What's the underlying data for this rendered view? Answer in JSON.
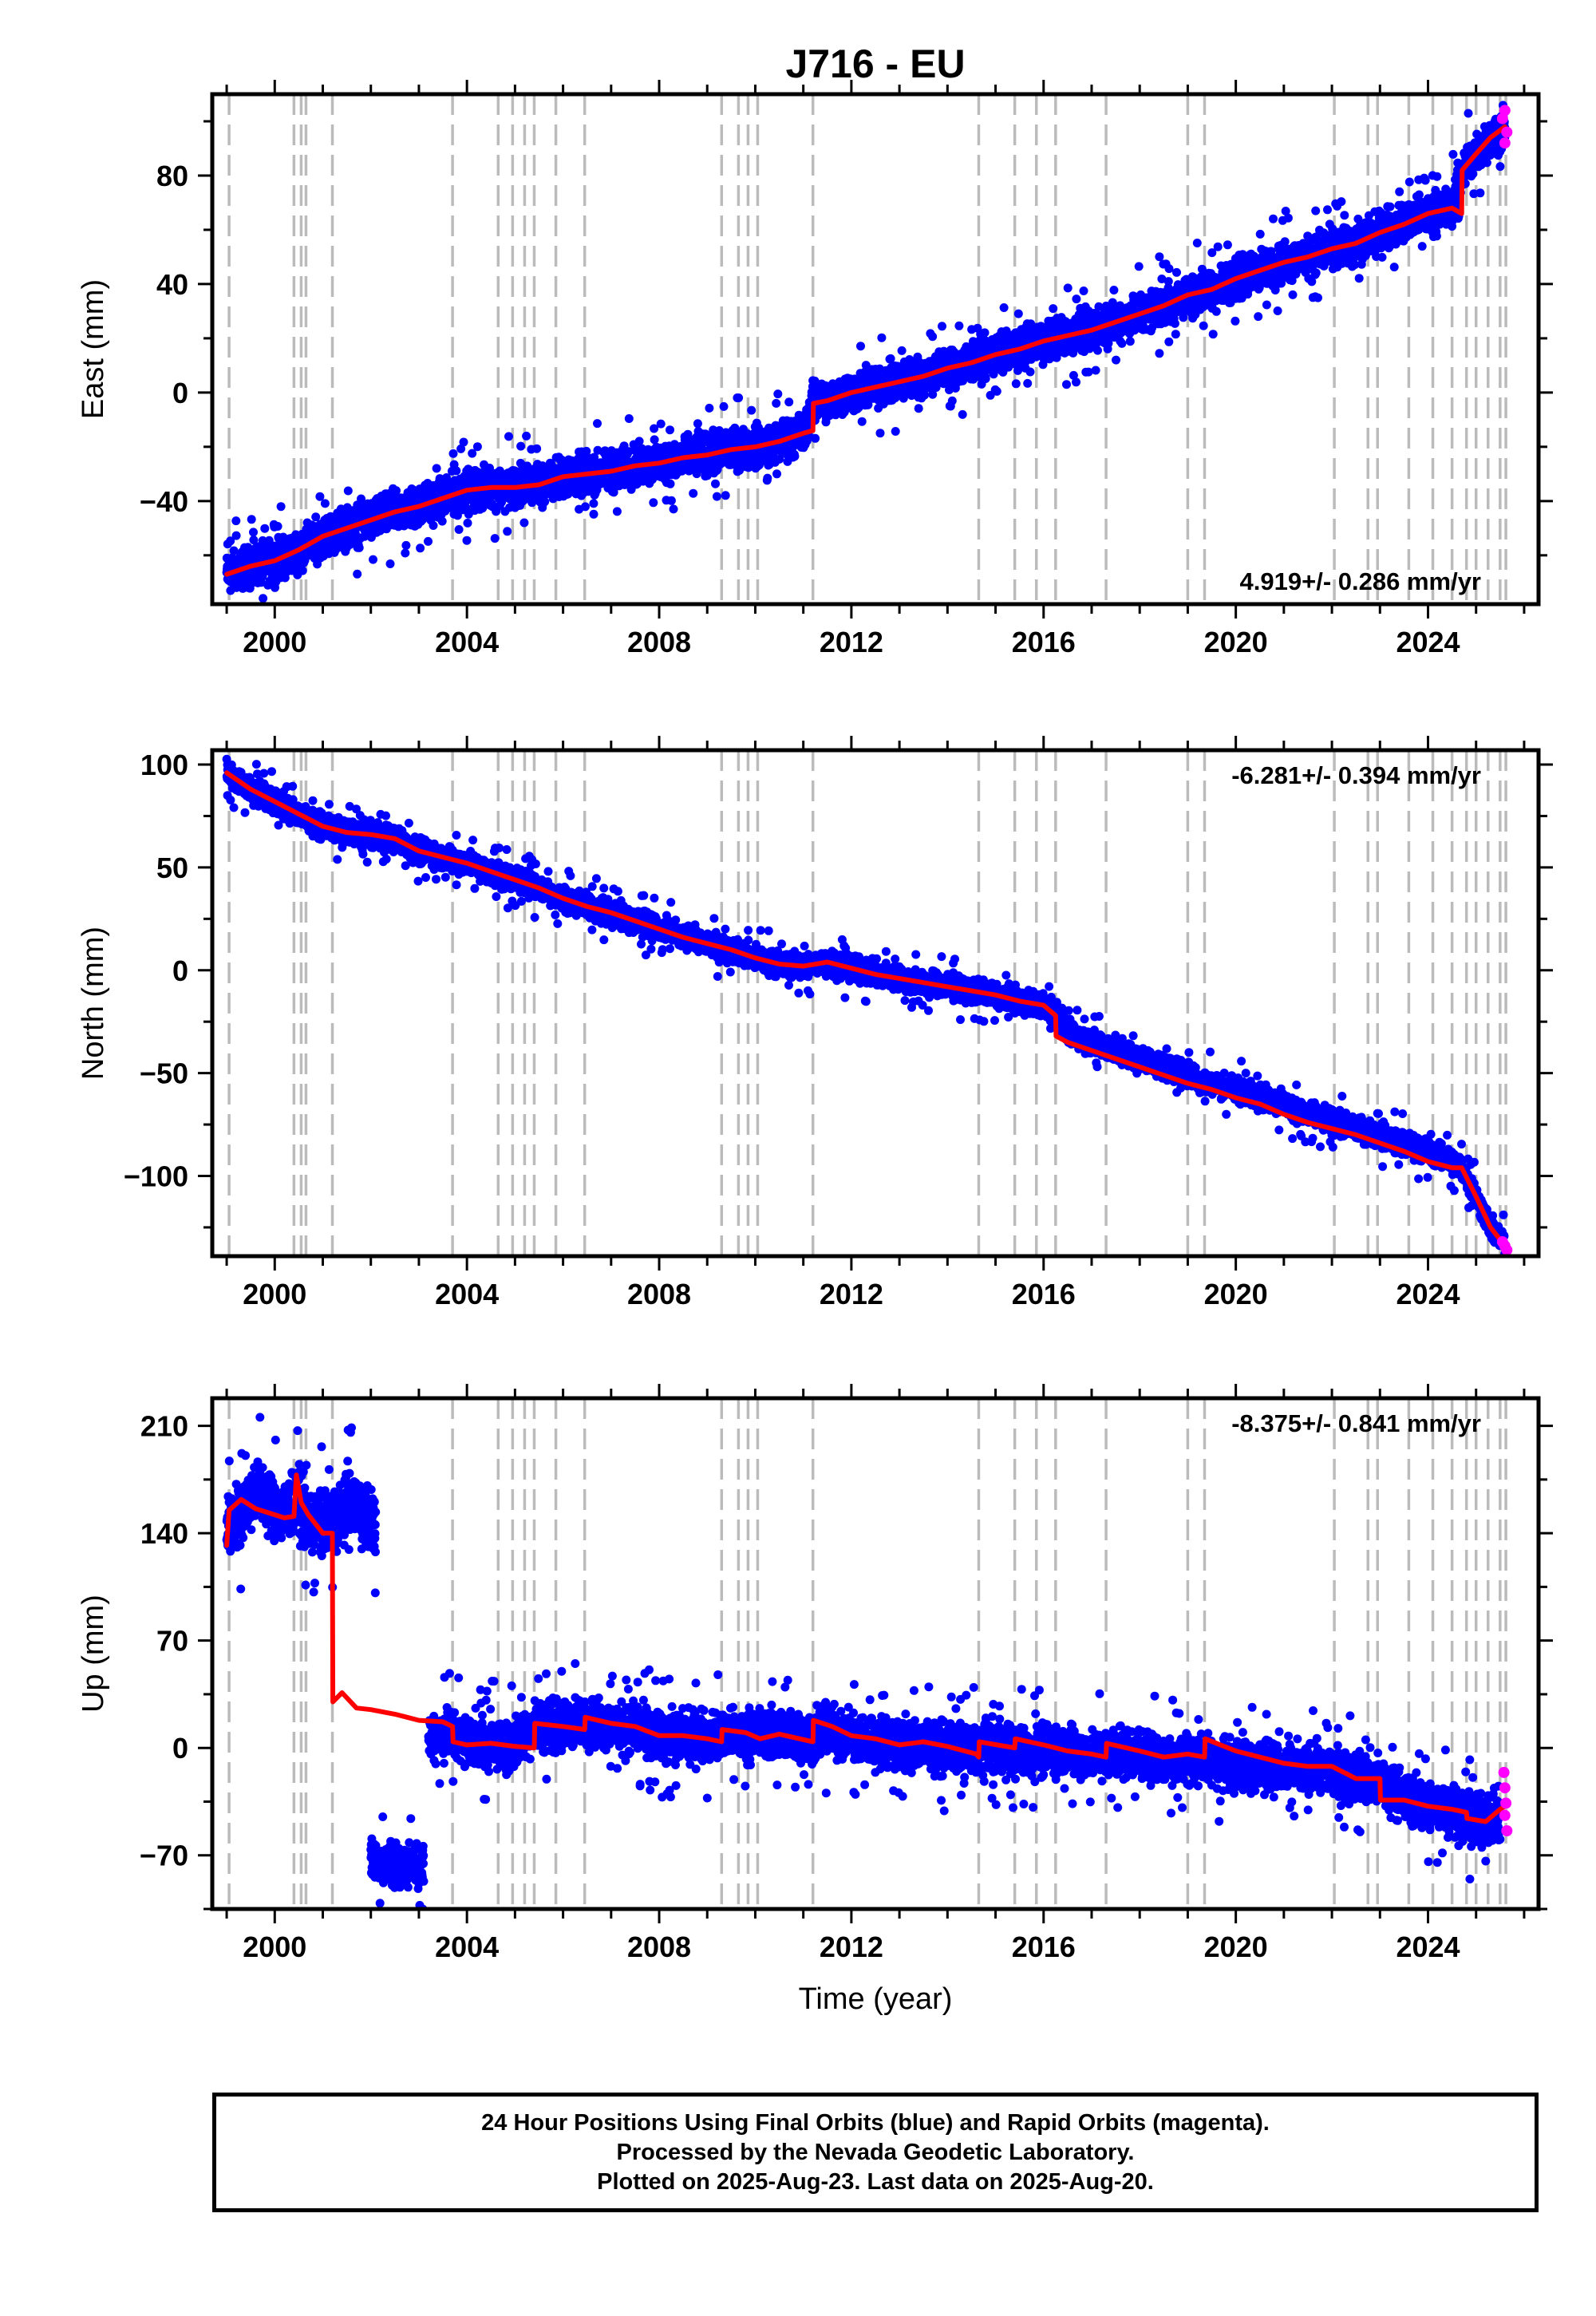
{
  "title": "J716 - EU",
  "colors": {
    "final_orbits": "#0000ff",
    "rapid_orbits": "#ff00ff",
    "model": "#ff0000",
    "event_lines": "#bbbbbb",
    "frame": "#000000"
  },
  "xaxis": {
    "label": "Time (year)",
    "ticks": [
      2000,
      2004,
      2008,
      2012,
      2016,
      2020,
      2024
    ],
    "range": [
      1998.7,
      2026.3
    ]
  },
  "event_lines": [
    1999.05,
    2000.4,
    2000.55,
    2000.65,
    2001.2,
    2003.7,
    2004.65,
    2004.95,
    2005.2,
    2005.4,
    2005.85,
    2006.45,
    2009.3,
    2009.65,
    2009.85,
    2010.05,
    2011.2,
    2014.65,
    2015.4,
    2015.85,
    2016.25,
    2017.3,
    2019.0,
    2019.35,
    2022.05,
    2022.75,
    2022.95,
    2023.6,
    2024.1,
    2024.5,
    2024.8,
    2025.0,
    2025.25,
    2025.5,
    2025.62
  ],
  "chart_data": [
    {
      "type": "scatter",
      "panel": "east",
      "ylabel": "East (mm)",
      "ylim": [
        -78,
        110
      ],
      "yticks": [
        -40,
        0,
        40,
        80
      ],
      "rate_text": "4.919+/- 0.286 mm/yr",
      "rate_position": "bottom-right",
      "series": [
        {
          "name": "24 Hour Positions (Final Orbits)",
          "kind": "scatter-band",
          "color": "#0000ff",
          "x": [
            1999.0,
            1999.5,
            2000.0,
            2000.5,
            2001.0,
            2001.5,
            2002.0,
            2002.5,
            2003.0,
            2003.5,
            2004.0,
            2004.5,
            2005.0,
            2005.5,
            2006.0,
            2006.5,
            2007.0,
            2007.5,
            2008.0,
            2008.5,
            2009.0,
            2009.5,
            2010.0,
            2010.5,
            2011.0,
            2011.2,
            2011.5,
            2012.0,
            2012.5,
            2013.0,
            2013.5,
            2014.0,
            2014.5,
            2015.0,
            2015.5,
            2016.0,
            2016.5,
            2017.0,
            2017.5,
            2018.0,
            2018.5,
            2019.0,
            2019.5,
            2020.0,
            2020.5,
            2021.0,
            2021.5,
            2022.0,
            2022.5,
            2023.0,
            2023.5,
            2024.0,
            2024.5,
            2024.7,
            2025.0,
            2025.3,
            2025.6
          ],
          "y": [
            -67,
            -64,
            -62,
            -58,
            -53,
            -50,
            -47,
            -44,
            -42,
            -39,
            -36,
            -35,
            -35,
            -34,
            -31,
            -30,
            -29,
            -27,
            -26,
            -24,
            -23,
            -21,
            -20,
            -18,
            -15,
            -4,
            -3,
            0,
            2,
            4,
            6,
            9,
            11,
            14,
            16,
            19,
            21,
            23,
            26,
            29,
            32,
            36,
            38,
            42,
            45,
            48,
            50,
            53,
            55,
            59,
            62,
            66,
            68,
            82,
            88,
            94,
            98
          ],
          "spread": 5
        },
        {
          "name": "Model",
          "kind": "line",
          "color": "#ff0000",
          "x": [
            1999.0,
            1999.5,
            2000.0,
            2000.5,
            2001.0,
            2001.5,
            2002.0,
            2002.5,
            2003.0,
            2003.5,
            2004.0,
            2004.5,
            2005.0,
            2005.5,
            2006.0,
            2006.5,
            2007.0,
            2007.5,
            2008.0,
            2008.5,
            2009.0,
            2009.5,
            2010.0,
            2010.5,
            2011.0,
            2011.2,
            2011.21,
            2011.5,
            2012.0,
            2012.5,
            2013.0,
            2013.5,
            2014.0,
            2014.5,
            2015.0,
            2015.5,
            2016.0,
            2016.5,
            2017.0,
            2017.5,
            2018.0,
            2018.5,
            2019.0,
            2019.5,
            2020.0,
            2020.5,
            2021.0,
            2021.5,
            2022.0,
            2022.5,
            2023.0,
            2023.5,
            2024.0,
            2024.5,
            2024.7,
            2024.71,
            2025.0,
            2025.3,
            2025.6
          ],
          "y": [
            -67,
            -64,
            -62,
            -58,
            -53,
            -50,
            -47,
            -44,
            -42,
            -39,
            -36,
            -35,
            -35,
            -34,
            -31,
            -30,
            -29,
            -27,
            -26,
            -24,
            -23,
            -21,
            -20,
            -18,
            -15,
            -14,
            -4,
            -3,
            0,
            2,
            4,
            6,
            9,
            11,
            14,
            16,
            19,
            21,
            23,
            26,
            29,
            32,
            36,
            38,
            42,
            45,
            48,
            50,
            53,
            55,
            59,
            62,
            66,
            68,
            66,
            82,
            88,
            94,
            98
          ]
        },
        {
          "name": "Rapid Orbits",
          "kind": "scatter",
          "color": "#ff00ff",
          "x": [
            2025.55,
            2025.6,
            2025.64,
            2025.6
          ],
          "y": [
            101,
            104,
            96,
            92
          ]
        }
      ]
    },
    {
      "type": "scatter",
      "panel": "north",
      "ylabel": "North (mm)",
      "ylim": [
        -139,
        107
      ],
      "yticks": [
        -100,
        -50,
        0,
        50,
        100
      ],
      "rate_text": "-6.281+/- 0.394 mm/yr",
      "rate_position": "top-right",
      "series": [
        {
          "name": "24 Hour Positions (Final Orbits)",
          "kind": "scatter-band",
          "color": "#0000ff",
          "x": [
            1999.0,
            1999.5,
            2000.0,
            2000.5,
            2001.0,
            2001.5,
            2002.0,
            2002.5,
            2003.0,
            2003.5,
            2004.0,
            2004.5,
            2005.0,
            2005.5,
            2006.0,
            2006.5,
            2007.0,
            2007.5,
            2008.0,
            2008.5,
            2009.0,
            2009.5,
            2010.0,
            2010.5,
            2011.0,
            2011.5,
            2012.0,
            2012.5,
            2013.0,
            2013.5,
            2014.0,
            2014.5,
            2015.0,
            2015.5,
            2016.0,
            2016.25,
            2016.5,
            2017.0,
            2017.5,
            2018.0,
            2018.5,
            2019.0,
            2019.5,
            2020.0,
            2020.5,
            2021.0,
            2021.5,
            2022.0,
            2022.5,
            2023.0,
            2023.5,
            2024.0,
            2024.5,
            2024.7,
            2025.0,
            2025.3,
            2025.6
          ],
          "y": [
            96,
            88,
            82,
            76,
            70,
            67,
            66,
            64,
            58,
            55,
            52,
            48,
            44,
            40,
            35,
            31,
            28,
            24,
            20,
            16,
            13,
            10,
            6,
            3,
            2,
            4,
            1,
            -2,
            -4,
            -6,
            -8,
            -10,
            -12,
            -15,
            -17,
            -20,
            -30,
            -35,
            -39,
            -43,
            -47,
            -51,
            -55,
            -58,
            -62,
            -65,
            -70,
            -74,
            -77,
            -80,
            -84,
            -88,
            -93,
            -96,
            -110,
            -125,
            -134
          ],
          "spread": 4
        },
        {
          "name": "Model",
          "kind": "line",
          "color": "#ff0000",
          "x": [
            1999.0,
            1999.5,
            2000.0,
            2000.5,
            2001.0,
            2001.5,
            2002.0,
            2002.5,
            2003.0,
            2003.5,
            2004.0,
            2004.5,
            2005.0,
            2005.5,
            2006.0,
            2006.5,
            2007.0,
            2007.5,
            2008.0,
            2008.5,
            2009.0,
            2009.5,
            2010.0,
            2010.5,
            2011.0,
            2011.5,
            2012.0,
            2012.5,
            2013.0,
            2013.5,
            2014.0,
            2014.5,
            2015.0,
            2015.5,
            2016.0,
            2016.25,
            2016.26,
            2016.5,
            2017.0,
            2017.5,
            2018.0,
            2018.5,
            2019.0,
            2019.5,
            2020.0,
            2020.5,
            2021.0,
            2021.5,
            2022.0,
            2022.5,
            2023.0,
            2023.5,
            2024.0,
            2024.5,
            2024.7,
            2025.0,
            2025.3,
            2025.6
          ],
          "y": [
            96,
            88,
            82,
            76,
            70,
            67,
            66,
            64,
            58,
            55,
            52,
            48,
            44,
            40,
            35,
            31,
            28,
            24,
            20,
            16,
            13,
            10,
            6,
            3,
            2,
            4,
            1,
            -2,
            -4,
            -6,
            -8,
            -10,
            -12,
            -15,
            -17,
            -22,
            -32,
            -35,
            -39,
            -43,
            -47,
            -51,
            -55,
            -58,
            -62,
            -65,
            -70,
            -74,
            -77,
            -80,
            -84,
            -88,
            -93,
            -96,
            -96,
            -110,
            -125,
            -134
          ]
        },
        {
          "name": "Rapid Orbits",
          "kind": "scatter",
          "color": "#ff00ff",
          "x": [
            2025.55,
            2025.6,
            2025.64
          ],
          "y": [
            -132,
            -134,
            -136
          ]
        }
      ]
    },
    {
      "type": "scatter",
      "panel": "up",
      "ylabel": "Up (mm)",
      "ylim": [
        -105,
        228
      ],
      "yticks": [
        -70,
        0,
        70,
        140,
        210
      ],
      "rate_text": "-8.375+/- 0.841 mm/yr",
      "rate_position": "top-right",
      "series": [
        {
          "name": "24 Hour Positions (Final Orbits) 1999-2002",
          "kind": "scatter-band",
          "color": "#0000ff",
          "x": [
            1999.0,
            1999.3,
            1999.6,
            1999.9,
            2000.2,
            2000.45,
            2000.7,
            2001.0,
            2001.3,
            2001.6,
            2001.9,
            2002.1
          ],
          "y": [
            142,
            155,
            168,
            160,
            152,
            162,
            148,
            145,
            150,
            158,
            152,
            148
          ],
          "spread": 14
        },
        {
          "name": "24 Hour Positions (Final Orbits) 2002-2003",
          "kind": "scatter-band",
          "color": "#0000ff",
          "x": [
            2002.0,
            2002.3,
            2002.6,
            2002.9,
            2003.1
          ],
          "y": [
            -72,
            -76,
            -79,
            -74,
            -78
          ],
          "spread": 9
        },
        {
          "name": "24 Hour Positions (Final Orbits) 2003-2025",
          "kind": "scatter-band",
          "color": "#0000ff",
          "x": [
            2003.2,
            2003.6,
            2004.0,
            2004.5,
            2005.0,
            2005.4,
            2006.0,
            2006.5,
            2007.0,
            2007.5,
            2008.0,
            2008.5,
            2009.0,
            2009.5,
            2010.0,
            2010.5,
            2011.0,
            2011.5,
            2012.0,
            2012.5,
            2013.0,
            2013.5,
            2014.0,
            2014.5,
            2015.0,
            2015.5,
            2016.0,
            2016.5,
            2017.0,
            2017.5,
            2018.0,
            2018.5,
            2019.0,
            2019.5,
            2020.0,
            2020.5,
            2021.0,
            2021.5,
            2022.0,
            2022.5,
            2023.0,
            2023.5,
            2024.0,
            2024.5,
            2025.0,
            2025.5
          ],
          "y": [
            8,
            10,
            4,
            3,
            2,
            15,
            14,
            18,
            14,
            12,
            8,
            8,
            6,
            8,
            9,
            10,
            7,
            11,
            8,
            4,
            2,
            3,
            0,
            -2,
            2,
            -3,
            -2,
            0,
            -6,
            0,
            -5,
            -8,
            -6,
            -10,
            -10,
            -12,
            -14,
            -14,
            -16,
            -18,
            -22,
            -32,
            -38,
            -40,
            -48,
            -46
          ],
          "spread": 11
        },
        {
          "name": "Model",
          "kind": "line",
          "color": "#ff0000",
          "x": [
            1999.0,
            1999.05,
            1999.3,
            1999.6,
            1999.9,
            2000.2,
            2000.4,
            2000.45,
            2000.55,
            2000.7,
            2001.0,
            2001.2,
            2001.21,
            2001.4,
            2001.7,
            2002.0,
            2002.5,
            2003.0,
            2003.5,
            2003.7,
            2003.71,
            2004.0,
            2004.5,
            2005.0,
            2005.4,
            2005.41,
            2006.0,
            2006.45,
            2006.46,
            2007.0,
            2007.5,
            2008.0,
            2008.5,
            2009.0,
            2009.3,
            2009.31,
            2009.8,
            2010.1,
            2010.5,
            2011.2,
            2011.21,
            2011.6,
            2012.0,
            2012.5,
            2013.0,
            2013.5,
            2014.0,
            2014.6,
            2014.65,
            2014.66,
            2015.4,
            2015.41,
            2016.0,
            2016.5,
            2017.0,
            2017.3,
            2017.31,
            2018.0,
            2018.5,
            2019.0,
            2019.35,
            2019.36,
            2020.0,
            2020.5,
            2021.0,
            2021.5,
            2022.0,
            2022.5,
            2023.0,
            2023.01,
            2023.5,
            2024.0,
            2024.5,
            2024.8,
            2024.81,
            2025.2,
            2025.5,
            2025.6
          ],
          "y": [
            132,
            155,
            162,
            156,
            153,
            150,
            151,
            178,
            160,
            152,
            140,
            140,
            30,
            36,
            26,
            25,
            22,
            18,
            17,
            14,
            4,
            2,
            3,
            1,
            0,
            16,
            14,
            12,
            20,
            16,
            14,
            8,
            8,
            6,
            4,
            12,
            10,
            6,
            9,
            4,
            18,
            14,
            8,
            6,
            2,
            4,
            1,
            -4,
            -6,
            4,
            0,
            6,
            2,
            -2,
            -4,
            -6,
            3,
            -2,
            -6,
            -4,
            -6,
            6,
            -2,
            -6,
            -10,
            -12,
            -12,
            -20,
            -20,
            -34,
            -34,
            -38,
            -40,
            -42,
            -46,
            -48,
            -40,
            -38
          ]
        },
        {
          "name": "Rapid Orbits",
          "kind": "scatter",
          "color": "#ff00ff",
          "x": [
            2025.58,
            2025.6,
            2025.62,
            2025.6,
            2025.64
          ],
          "y": [
            -16,
            -26,
            -36,
            -44,
            -54
          ]
        }
      ]
    }
  ],
  "footer": {
    "line1": "24 Hour Positions Using Final Orbits (blue) and Rapid Orbits (magenta).",
    "line2": "Processed by the Nevada Geodetic Laboratory.",
    "line3": "Plotted on 2025-Aug-23. Last data on 2025-Aug-20."
  }
}
